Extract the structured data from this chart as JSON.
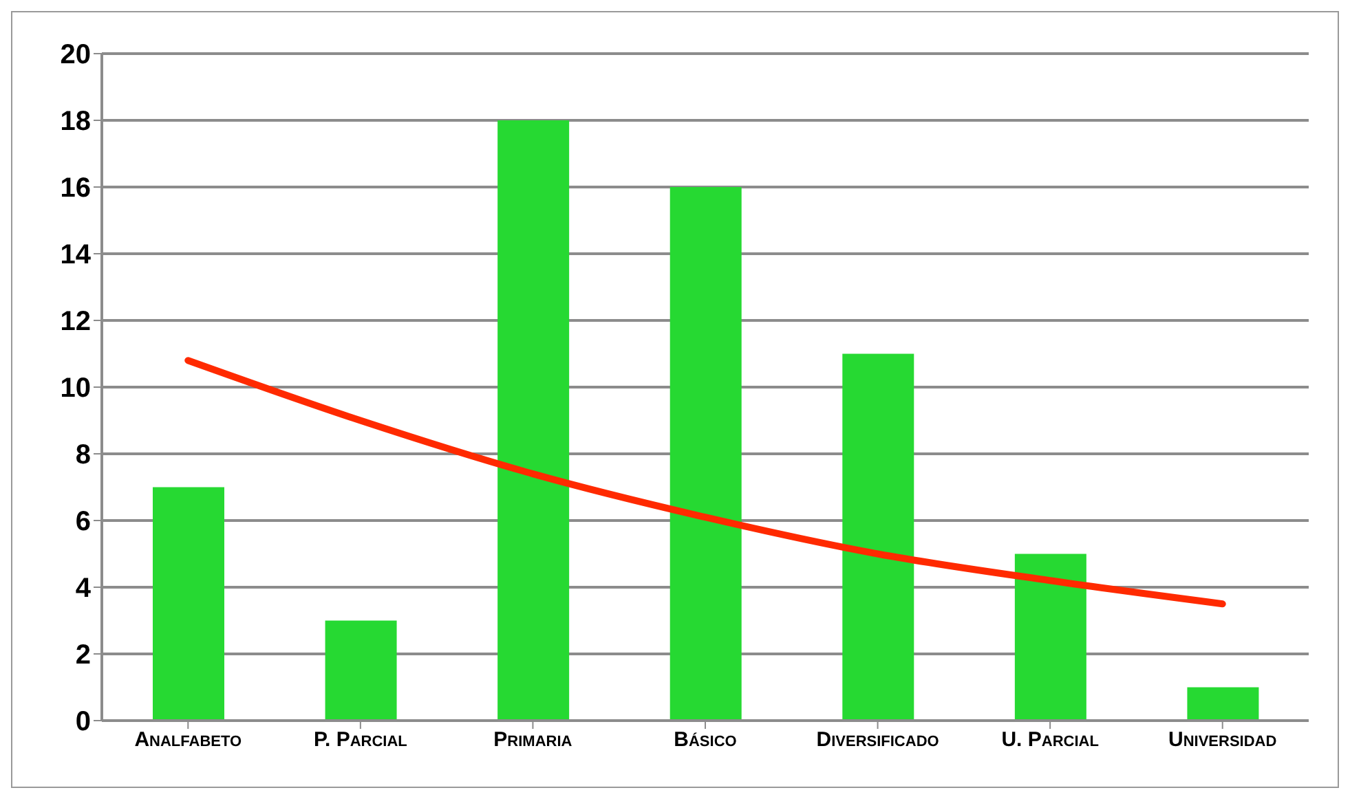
{
  "chart_data": {
    "type": "bar",
    "categories": [
      "Analfabeto",
      "P. Parcial",
      "Primaria",
      "Básico",
      "Diversificado",
      "U. Parcial",
      "Universidad"
    ],
    "series": [
      {
        "color": "#26d932",
        "values": [
          7,
          3,
          18,
          16,
          11,
          5,
          1
        ]
      },
      {
        "type": "line",
        "color": "#ff2a00",
        "values": [
          10.8,
          9.0,
          7.4,
          6.1,
          5.0,
          4.2,
          3.5
        ]
      }
    ],
    "ylim": [
      0,
      20
    ],
    "yticks": [
      0,
      2,
      4,
      6,
      8,
      10,
      12,
      14,
      16,
      18,
      20
    ],
    "grid": "y",
    "marker": "none",
    "line_style": "solid"
  }
}
